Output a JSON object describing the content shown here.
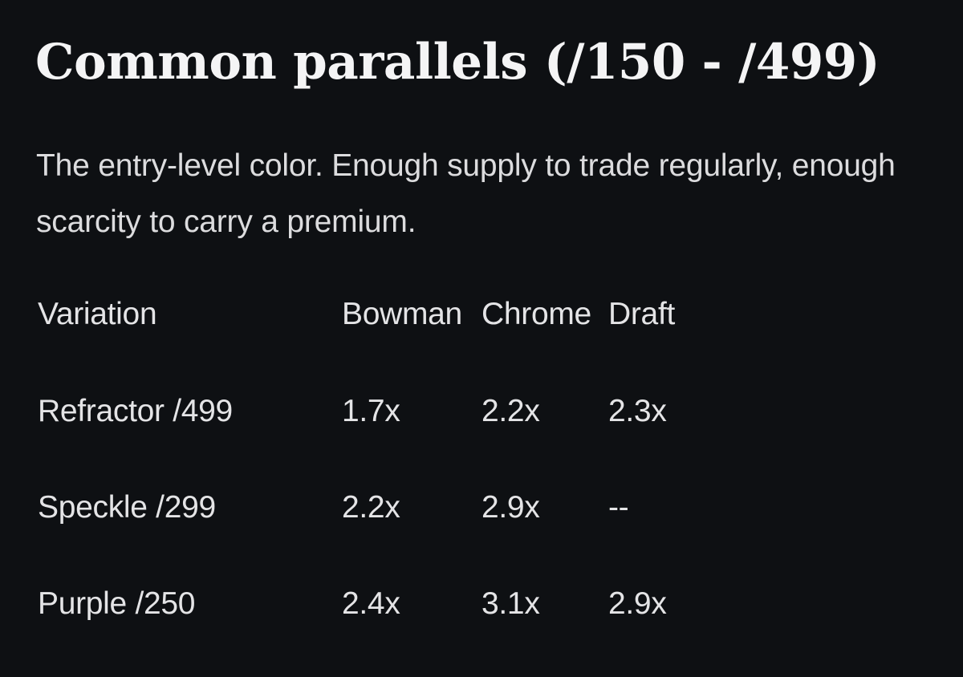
{
  "section": {
    "title": "Common parallels (/150 - /499)",
    "description": "The entry-level color. Enough supply to trade regularly, enough scarcity to carry a premium."
  },
  "table": {
    "headers": [
      "Variation",
      "Bowman",
      "Chrome",
      "Draft"
    ],
    "rows": [
      [
        "Refractor /499",
        "1.7x",
        "2.2x",
        "2.3x"
      ],
      [
        "Speckle /299",
        "2.2x",
        "2.9x",
        "--"
      ],
      [
        "Purple /250",
        "2.4x",
        "3.1x",
        "2.9x"
      ]
    ]
  }
}
